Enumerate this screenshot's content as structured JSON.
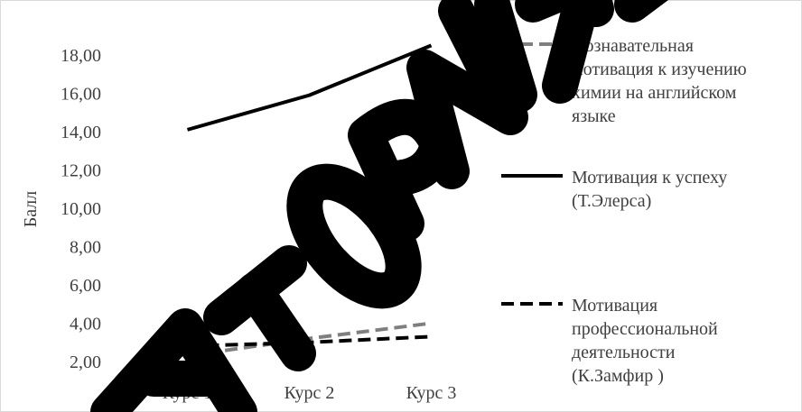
{
  "chart_data": {
    "type": "line",
    "categories": [
      "Курс 1",
      "Курс 2",
      "Курс 3"
    ],
    "ylabel": "Балл",
    "ylim": [
      2,
      19
    ],
    "yticks": [
      "2,00",
      "4,00",
      "6,00",
      "8,00",
      "10,00",
      "12,00",
      "14,00",
      "16,00",
      "18,00"
    ],
    "grid": false,
    "legend_position": "right",
    "series": [
      {
        "name_lines": [
          "Познавательная",
          "мотивация к изучению",
          "химии на английском",
          "языке"
        ],
        "values": [
          2.3,
          3.2,
          4.0
        ],
        "color": "#7f7f7f",
        "dash": "dashed"
      },
      {
        "name_lines": [
          "Мотивация к успеху",
          "(Т.Элерса)"
        ],
        "values": [
          14.1,
          15.9,
          18.5
        ],
        "color": "#000000",
        "dash": "solid"
      },
      {
        "name_lines": [
          "Мотивация",
          "профессиональной",
          "деятельности",
          "(К.Замфир )"
        ],
        "values": [
          2.8,
          3.0,
          3.3
        ],
        "color": "#000000",
        "dash": "dashed"
      }
    ]
  },
  "watermark": {
    "text": "АТОРИЙ",
    "color": "#000000"
  }
}
